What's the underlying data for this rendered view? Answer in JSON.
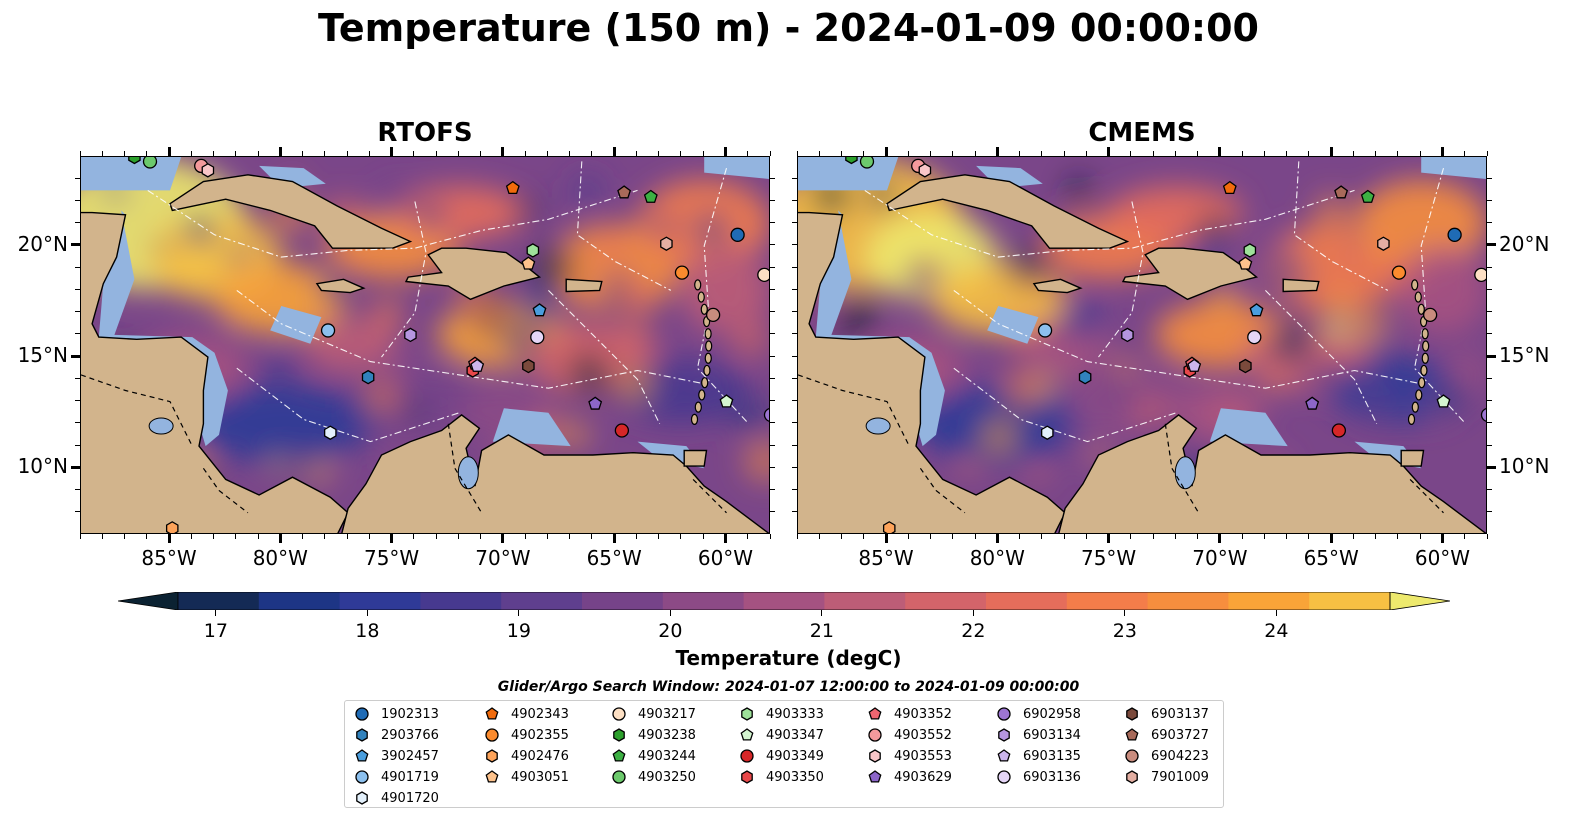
{
  "title": "Temperature (150 m) - 2024-01-09 00:00:00",
  "panels": [
    {
      "name": "RTOFS"
    },
    {
      "name": "CMEMS"
    }
  ],
  "lon_ticks": [
    "85°W",
    "80°W",
    "75°W",
    "70°W",
    "65°W",
    "60°W"
  ],
  "lat_ticks": [
    "20°N",
    "15°N",
    "10°N"
  ],
  "colorbar": {
    "label": "Temperature (degC)",
    "ticks": [
      "17",
      "18",
      "19",
      "20",
      "21",
      "22",
      "23",
      "24"
    ],
    "min": 16.75,
    "max": 24.75,
    "colors": [
      "#0b2232",
      "#142a55",
      "#1d3585",
      "#2f3a97",
      "#47398f",
      "#5f3f8e",
      "#764389",
      "#8c4a86",
      "#a55281",
      "#bd5d77",
      "#d3646a",
      "#e56d5b",
      "#f37d4a",
      "#f68e3e",
      "#f9a438",
      "#f7c043",
      "#ede96d"
    ]
  },
  "legend": {
    "title": "Glider/Argo Search Window: 2024-01-07 12:00:00 to 2024-01-09 00:00:00",
    "entries": [
      {
        "id": "1902313",
        "marker": "circle",
        "color": "#1f6bb5"
      },
      {
        "id": "2903766",
        "marker": "hexagon",
        "color": "#3182bd"
      },
      {
        "id": "3902457",
        "marker": "pentagon",
        "color": "#4a9ede"
      },
      {
        "id": "4901719",
        "marker": "circle",
        "color": "#8cc0ee"
      },
      {
        "id": "4901720",
        "marker": "hexagon",
        "color": "#e3f0fb"
      },
      {
        "id": "4902343",
        "marker": "pentagon",
        "color": "#f26b0c"
      },
      {
        "id": "4902355",
        "marker": "circle",
        "color": "#fb8b2e"
      },
      {
        "id": "4902476",
        "marker": "hexagon",
        "color": "#fda35a"
      },
      {
        "id": "4903051",
        "marker": "pentagon",
        "color": "#fdc28c"
      },
      {
        "id": "4903217",
        "marker": "circle",
        "color": "#fde0c4"
      },
      {
        "id": "4903238",
        "marker": "hexagon",
        "color": "#2ca02c"
      },
      {
        "id": "4903244",
        "marker": "pentagon",
        "color": "#3cb043"
      },
      {
        "id": "4903250",
        "marker": "circle",
        "color": "#6cc96c"
      },
      {
        "id": "4903333",
        "marker": "hexagon",
        "color": "#9ee19a"
      },
      {
        "id": "4903347",
        "marker": "pentagon",
        "color": "#d4f5d0"
      },
      {
        "id": "4903349",
        "marker": "circle",
        "color": "#d62728"
      },
      {
        "id": "4903350",
        "marker": "hexagon",
        "color": "#e8484a"
      },
      {
        "id": "4903352",
        "marker": "pentagon",
        "color": "#f06670"
      },
      {
        "id": "4903552",
        "marker": "circle",
        "color": "#f49a9c"
      },
      {
        "id": "4903553",
        "marker": "hexagon",
        "color": "#f9c6c8"
      },
      {
        "id": "4903629",
        "marker": "pentagon",
        "color": "#8c66c9"
      },
      {
        "id": "6902958",
        "marker": "circle",
        "color": "#9d75d2"
      },
      {
        "id": "6903134",
        "marker": "hexagon",
        "color": "#b596e0"
      },
      {
        "id": "6903135",
        "marker": "pentagon",
        "color": "#ccb5ec"
      },
      {
        "id": "6903136",
        "marker": "circle",
        "color": "#e5d6f7"
      },
      {
        "id": "6903137",
        "marker": "hexagon",
        "color": "#7b4a3c"
      },
      {
        "id": "6903727",
        "marker": "pentagon",
        "color": "#a86a5a"
      },
      {
        "id": "6904223",
        "marker": "circle",
        "color": "#c98c7e"
      },
      {
        "id": "7901009",
        "marker": "hexagon",
        "color": "#e3aea2"
      }
    ]
  },
  "floats": [
    {
      "id": "1902313",
      "lon": -59.5,
      "lat": 20.5
    },
    {
      "id": "2903766",
      "lon": -76.1,
      "lat": 14.1
    },
    {
      "id": "3902457",
      "lon": -68.4,
      "lat": 17.1
    },
    {
      "id": "4901719",
      "lon": -77.9,
      "lat": 16.2
    },
    {
      "id": "4901720",
      "lon": -77.8,
      "lat": 11.6
    },
    {
      "id": "4902343",
      "lon": -69.6,
      "lat": 22.6
    },
    {
      "id": "4902355",
      "lon": -62.0,
      "lat": 18.8
    },
    {
      "id": "4902476",
      "lon": -84.9,
      "lat": 7.3
    },
    {
      "id": "4903051",
      "lon": -68.9,
      "lat": 19.2
    },
    {
      "id": "4903217",
      "lon": -58.3,
      "lat": 18.7
    },
    {
      "id": "4903238",
      "lon": -86.6,
      "lat": 24.0
    },
    {
      "id": "4903244",
      "lon": -63.4,
      "lat": 22.2
    },
    {
      "id": "4903250",
      "lon": -85.9,
      "lat": 23.8
    },
    {
      "id": "4903333",
      "lon": -68.7,
      "lat": 19.8
    },
    {
      "id": "4903347",
      "lon": -60.0,
      "lat": 13.0
    },
    {
      "id": "4903349",
      "lon": -64.7,
      "lat": 11.7
    },
    {
      "id": "4903350",
      "lon": -71.4,
      "lat": 14.4
    },
    {
      "id": "4903352",
      "lon": -71.3,
      "lat": 14.7
    },
    {
      "id": "4903552",
      "lon": -83.6,
      "lat": 23.6
    },
    {
      "id": "4903553",
      "lon": -83.3,
      "lat": 23.4
    },
    {
      "id": "4903629",
      "lon": -65.9,
      "lat": 12.9
    },
    {
      "id": "6902958",
      "lon": -58.0,
      "lat": 12.4
    },
    {
      "id": "6903134",
      "lon": -74.2,
      "lat": 16.0
    },
    {
      "id": "6903135",
      "lon": -71.2,
      "lat": 14.6
    },
    {
      "id": "6903136",
      "lon": -68.5,
      "lat": 15.9
    },
    {
      "id": "6903137",
      "lon": -68.9,
      "lat": 14.6
    },
    {
      "id": "6903727",
      "lon": -64.6,
      "lat": 22.4
    },
    {
      "id": "6904223",
      "lon": -60.6,
      "lat": 16.9
    },
    {
      "id": "7901009",
      "lon": -62.7,
      "lat": 20.1
    }
  ],
  "map_extent": {
    "lon_min": -89.0,
    "lon_max": -58.0,
    "lat_min": 7.0,
    "lat_max": 24.0
  }
}
